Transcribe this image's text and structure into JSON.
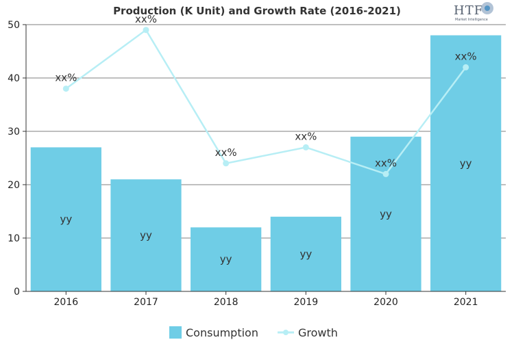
{
  "chart_data": {
    "type": "bar",
    "title": "Production (K Unit) and Growth Rate (2016-2021)",
    "categories": [
      "2016",
      "2017",
      "2018",
      "2019",
      "2020",
      "2021"
    ],
    "ylim": [
      0,
      50
    ],
    "yticks": [
      0,
      10,
      20,
      30,
      40,
      50
    ],
    "grid": true,
    "legend_position": "bottom",
    "series": [
      {
        "name": "Consumption",
        "type": "bar",
        "values": [
          27,
          21,
          12,
          14,
          29,
          48
        ],
        "labels": [
          "yy",
          "yy",
          "yy",
          "yy",
          "yy",
          "yy"
        ],
        "color": "#6fcde6"
      },
      {
        "name": "Growth",
        "type": "line",
        "values": [
          38,
          49,
          24,
          27,
          22,
          42
        ],
        "labels": [
          "xx%",
          "xx%",
          "xx%",
          "xx%",
          "xx%",
          "xx%"
        ],
        "color": "#b7eef5"
      }
    ]
  },
  "logo": {
    "text": "HTF",
    "subtext": "Market Intelligence"
  }
}
